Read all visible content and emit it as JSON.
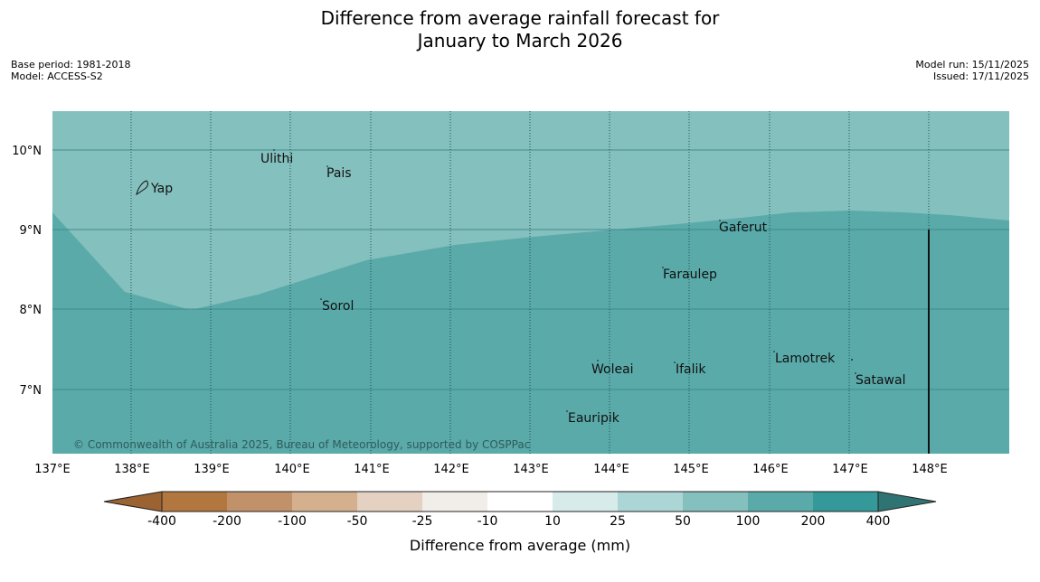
{
  "title": {
    "line1": "Difference from average rainfall forecast for",
    "line2": "January to March 2026"
  },
  "meta": {
    "base_period": "Base period: 1981-2018",
    "model": "Model: ACCESS-S2",
    "model_run": "Model run: 15/11/2025",
    "issued": "Issued: 17/11/2025"
  },
  "map": {
    "lat_labels": [
      "10°N",
      "9°N",
      "8°N",
      "7°N"
    ],
    "lon_labels": [
      "137°E",
      "138°E",
      "139°E",
      "140°E",
      "141°E",
      "142°E",
      "143°E",
      "144°E",
      "145°E",
      "146°E",
      "147°E",
      "148°E"
    ],
    "places": [
      "Ulithi",
      "Pais",
      "Yap",
      "Gaferut",
      "Faraulep",
      "Sorol",
      "Woleai",
      "Ifalik",
      "Lamotrek",
      "Satawal",
      "Eauripik"
    ],
    "copyright": "© Commonwealth of Australia 2025, Bureau of Meteorology, supported by COSPPac",
    "zones": [
      {
        "category": "50 to 100",
        "color": "#84c0be"
      },
      {
        "category": "100 to 200",
        "color": "#5aaaaa"
      }
    ]
  },
  "colorbar": {
    "title": "Difference from average (mm)",
    "ticks": [
      "-400",
      "-200",
      "-100",
      "-50",
      "-25",
      "-10",
      "10",
      "25",
      "50",
      "100",
      "200",
      "400"
    ],
    "colors": [
      "#9b6332",
      "#b1773e",
      "#c1916a",
      "#d4b08f",
      "#e4d1c1",
      "#f1eeea",
      "#ffffff",
      "#d6ebea",
      "#acd6d5",
      "#84c0be",
      "#5aaaaa",
      "#35999a",
      "#2f7472"
    ]
  }
}
